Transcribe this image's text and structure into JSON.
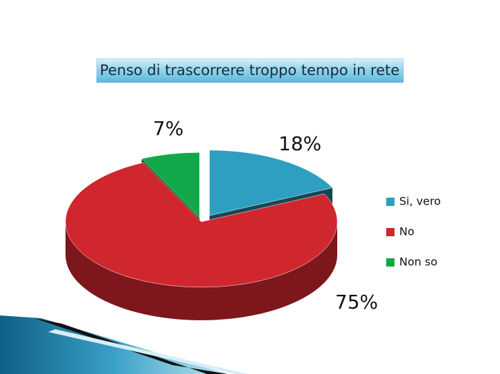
{
  "chart_data": {
    "type": "pie",
    "title": "Penso di trascorrere troppo tempo in rete",
    "categories": [
      "Si, vero",
      "No",
      "Non so"
    ],
    "values": [
      18,
      75,
      7
    ],
    "value_labels": [
      "18%",
      "75%",
      "7%"
    ],
    "colors": [
      "#2e9fc0",
      "#d0262e",
      "#12a84a"
    ],
    "legend": "right"
  }
}
